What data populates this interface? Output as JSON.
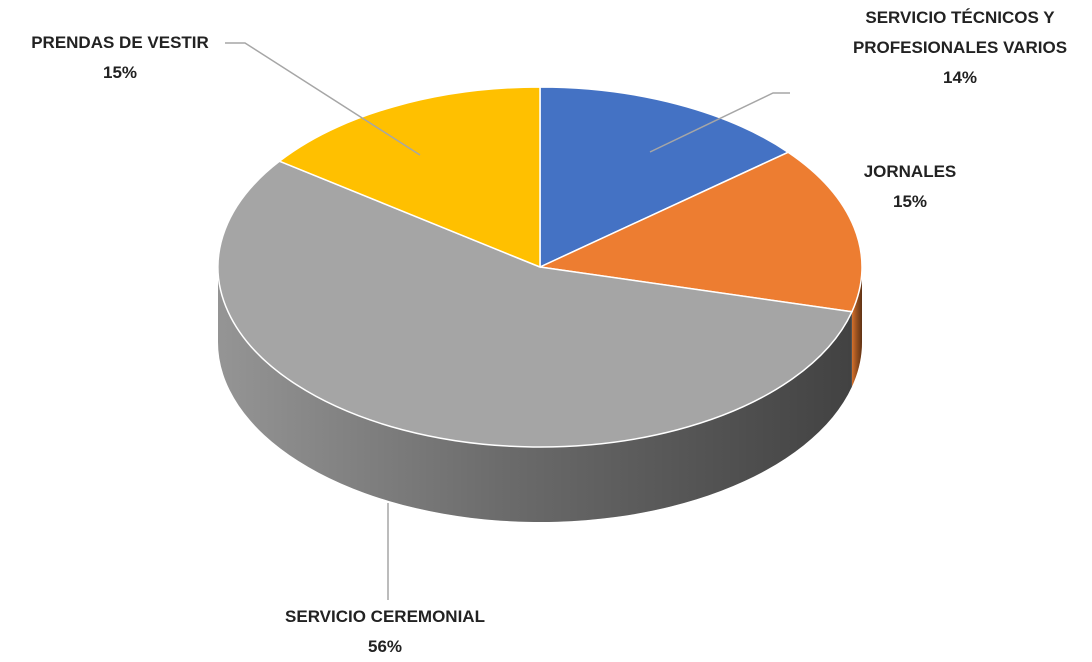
{
  "chart_data": {
    "type": "pie",
    "categories": [
      "SERVICIO TÉCNICOS Y PROFESIONALES VARIOS",
      "JORNALES",
      "SERVICIO CEREMONIAL",
      "PRENDAS DE VESTIR"
    ],
    "values": [
      14,
      15,
      56,
      15
    ],
    "value_labels": [
      "14%",
      "15%",
      "56%",
      "15%"
    ],
    "colors": [
      "#4472c4",
      "#ed7d31",
      "#a5a5a5",
      "#ffc000"
    ]
  }
}
